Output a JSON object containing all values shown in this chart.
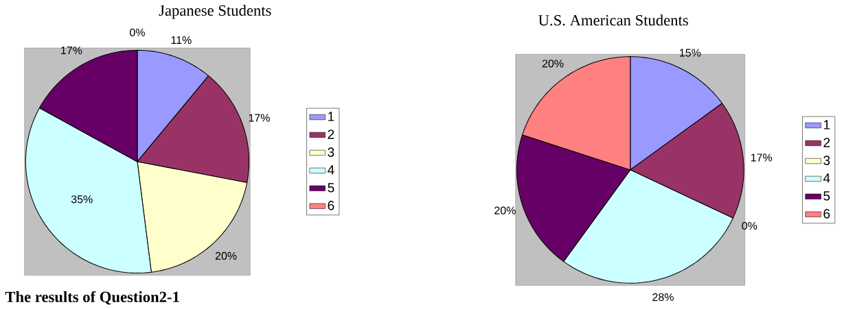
{
  "chart_data": [
    {
      "type": "pie",
      "title": "Japanese Students",
      "categories": [
        "1",
        "2",
        "3",
        "4",
        "5",
        "6"
      ],
      "values": [
        11,
        17,
        20,
        35,
        17,
        0
      ],
      "colors": [
        "#9999ff",
        "#993366",
        "#ffffcc",
        "#ccffff",
        "#660066",
        "#ff8080"
      ],
      "value_labels": [
        "11%",
        "17%",
        "20%",
        "35%",
        "17%",
        "0%"
      ],
      "legend": "right",
      "annotations": [
        "The results of Question2-1"
      ]
    },
    {
      "type": "pie",
      "title": "U.S. American Students",
      "categories": [
        "1",
        "2",
        "3",
        "4",
        "5",
        "6"
      ],
      "values": [
        15,
        17,
        0,
        28,
        20,
        20
      ],
      "colors": [
        "#9999ff",
        "#993366",
        "#ffffcc",
        "#ccffff",
        "#660066",
        "#ff8080"
      ],
      "value_labels": [
        "15%",
        "17%",
        "0%",
        "28%",
        "20%",
        "20%"
      ],
      "legend": "right"
    }
  ]
}
